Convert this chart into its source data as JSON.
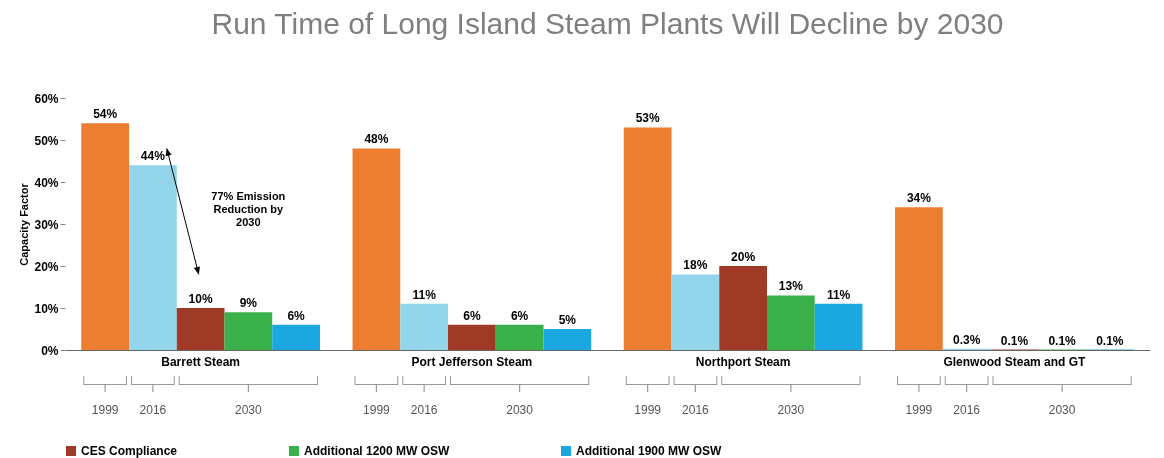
{
  "chart_data": {
    "type": "bar",
    "title": "Run Time of Long Island Steam Plants Will Decline by 2030",
    "ylabel": "Capacity Factor",
    "categories": [
      "Barrett Steam",
      "Port Jefferson Steam",
      "Northport Steam",
      "Glenwood Steam and GT"
    ],
    "series": [
      {
        "color": "#ed7d31",
        "values": [
          54,
          48,
          53,
          34
        ],
        "value_labels": [
          "54%",
          "48%",
          "53%",
          "34%"
        ]
      },
      {
        "color": "#93d5ea",
        "values": [
          44,
          11,
          18,
          0.3
        ],
        "value_labels": [
          "44%",
          "11%",
          "18%",
          "0.3%"
        ]
      },
      {
        "name": "CES Compliance",
        "color": "#9e3a26",
        "values": [
          10,
          6,
          20,
          0.1
        ],
        "value_labels": [
          "10%",
          "6%",
          "20%",
          "0.1%"
        ]
      },
      {
        "name": "Additional 1200 MW OSW",
        "color": "#3ab04a",
        "values": [
          9,
          6,
          13,
          0.1
        ],
        "value_labels": [
          "9%",
          "6%",
          "13%",
          "0.1%"
        ]
      },
      {
        "name": "Additional 1900 MW OSW",
        "color": "#1ba7e0",
        "values": [
          6,
          5,
          11,
          0.1
        ],
        "value_labels": [
          "6%",
          "5%",
          "11%",
          "0.1%"
        ]
      }
    ],
    "ylim": [
      0,
      60
    ],
    "yticks": [
      {
        "value": 0,
        "label": "0%"
      },
      {
        "value": 10,
        "label": "10%"
      },
      {
        "value": 20,
        "label": "20%"
      },
      {
        "value": 30,
        "label": "30%"
      },
      {
        "value": 40,
        "label": "40%"
      },
      {
        "value": 50,
        "label": "50%"
      },
      {
        "value": 60,
        "label": "60%"
      }
    ],
    "annotations": [
      "77% Emission Reduction by 2030",
      "1999",
      "2016",
      "2030"
    ],
    "legend": "bottom"
  }
}
